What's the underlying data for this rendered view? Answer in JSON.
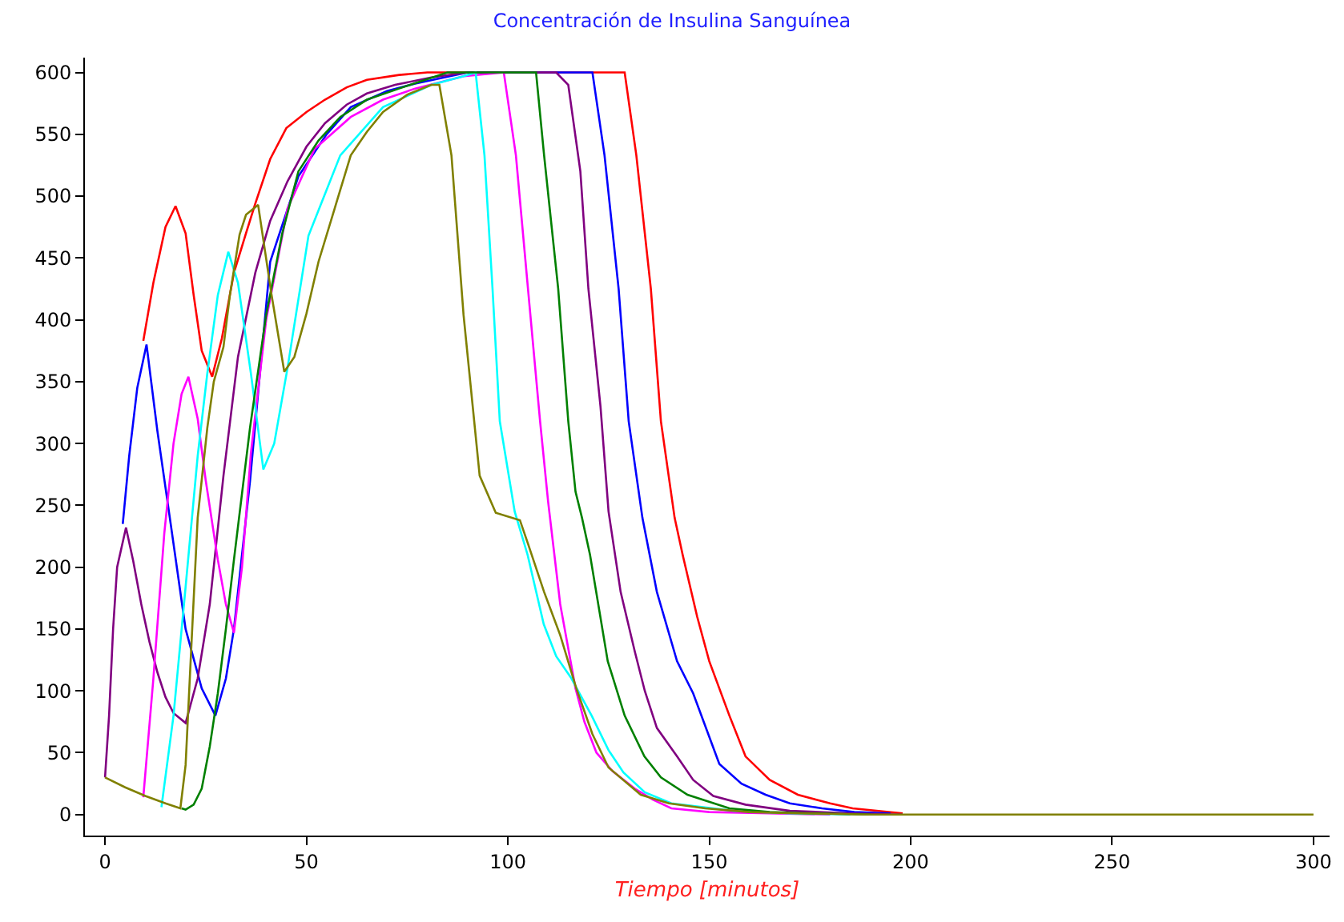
{
  "chart_data": {
    "type": "line",
    "title": "Concentración de Insulina Sanguínea",
    "xlabel": "Tiempo [minutos]",
    "xlim": [
      -5,
      304
    ],
    "ylim": [
      -17,
      612
    ],
    "xticks": [
      0,
      50,
      100,
      150,
      200,
      250,
      300
    ],
    "yticks": [
      0,
      50,
      100,
      150,
      200,
      250,
      300,
      350,
      400,
      450,
      500,
      550,
      600
    ],
    "grid": false,
    "marker": "none",
    "line_style": "solid",
    "series": [
      {
        "color": "#ff0000",
        "x": [
          9.5,
          12,
          15,
          17.5,
          20,
          22,
          24,
          26.6,
          29,
          32,
          35,
          37.3,
          41,
          45,
          50,
          54.6,
          60,
          65,
          73,
          80,
          129,
          131.9,
          135.5,
          138,
          141.4,
          143.4,
          147,
          150,
          155,
          159,
          165,
          172,
          180,
          185.6,
          198
        ],
        "values": [
          383,
          430,
          475,
          492,
          470,
          420,
          375,
          354,
          385,
          438,
          470,
          494,
          530,
          555,
          568,
          578,
          588,
          594,
          598,
          600,
          600,
          533,
          425,
          318,
          240,
          210,
          160,
          124,
          80,
          47,
          28,
          16,
          9,
          5,
          1
        ]
      },
      {
        "color": "#0000ff",
        "x": [
          4.4,
          6,
          8,
          10.3,
          13,
          16.3,
          20,
          24,
          27.4,
          30,
          32,
          36,
          41,
          48,
          55,
          61,
          70,
          77,
          90,
          121,
          124,
          127.5,
          130,
          133.4,
          137,
          142,
          146,
          152.5,
          158,
          164,
          170,
          178,
          186,
          195
        ],
        "values": [
          235,
          290,
          345,
          380,
          310,
          235,
          150,
          102,
          80,
          110,
          150,
          270,
          447,
          516,
          550,
          572,
          585,
          591,
          600,
          600,
          533,
          425,
          318,
          240,
          180,
          124,
          98,
          41,
          25,
          16,
          9,
          5,
          2,
          1
        ]
      },
      {
        "color": "#800080",
        "x": [
          0,
          1,
          2,
          3,
          5.2,
          7,
          9,
          11,
          13,
          15,
          17,
          20,
          23,
          26,
          29.4,
          33,
          37.3,
          41,
          45.3,
          50,
          54.6,
          60,
          65,
          72,
          81,
          90,
          112,
          115,
          118,
          120,
          123,
          125,
          128,
          131.5,
          134,
          137,
          142,
          146,
          151,
          159,
          170,
          185,
          198
        ],
        "values": [
          30,
          80,
          150,
          200,
          232,
          205,
          170,
          140,
          115,
          95,
          82,
          74,
          110,
          170,
          274,
          370,
          438,
          480,
          512,
          540,
          559,
          574,
          583,
          590,
          596,
          600,
          600,
          590,
          520,
          425,
          330,
          245,
          180,
          132,
          100,
          70,
          47,
          28,
          15,
          8,
          3,
          1,
          0
        ]
      },
      {
        "color": "#ff00ff",
        "x": [
          9.5,
          12,
          14.7,
          17,
          19,
          20.7,
          23,
          25,
          28,
          30,
          32,
          34,
          36.2,
          40,
          45.3,
          52,
          61,
          69,
          77,
          89,
          99,
          102,
          105,
          108,
          110,
          113,
          116.8,
          119,
          122,
          126,
          131.5,
          136,
          140.6,
          150,
          165,
          180
        ],
        "values": [
          14,
          110,
          227,
          300,
          340,
          354,
          320,
          270,
          206,
          170,
          147,
          200,
          292,
          400,
          490,
          538,
          564,
          578,
          587,
          597,
          600,
          533,
          425,
          318,
          253,
          170,
          102,
          75,
          50,
          35,
          21,
          12,
          5,
          2,
          1,
          0
        ]
      },
      {
        "color": "#00ffff",
        "x": [
          14,
          17,
          20,
          23,
          25.4,
          28,
          30.6,
          33,
          36.2,
          39.3,
          42,
          45.3,
          50.5,
          58.4,
          69,
          81,
          89,
          92,
          94.2,
          96.2,
          98,
          101.7,
          104.9,
          108.9,
          112,
          115.6,
          120.8,
          125,
          128.7,
          134,
          140.6,
          156,
          170,
          185
        ],
        "values": [
          6,
          80,
          184,
          290,
          357,
          420,
          455,
          430,
          357,
          279,
          300,
          361,
          468,
          533,
          572,
          590,
          597,
          600,
          533,
          425,
          318,
          245,
          210,
          154,
          128,
          111,
          80,
          52,
          34,
          18,
          9,
          3,
          1,
          0
        ]
      },
      {
        "color": "#008000",
        "x": [
          19,
          20,
          22,
          24,
          26,
          28,
          30,
          32,
          36,
          40,
          44,
          48,
          53,
          58.4,
          65,
          73,
          85,
          107,
          109,
          112.5,
          115,
          116.8,
          118.4,
          120.4,
          124.8,
          129,
          133.9,
          138,
          144.6,
          155,
          165,
          175,
          190
        ],
        "values": [
          5,
          4,
          8,
          21,
          55,
          98,
          150,
          206,
          313,
          404,
          470,
          520,
          545,
          564,
          578,
          587,
          600,
          600,
          533,
          425,
          318,
          261,
          240,
          210,
          124,
          80,
          47,
          30,
          16,
          5,
          2,
          1,
          0
        ]
      },
      {
        "color": "#808000",
        "x": [
          0,
          5,
          10,
          15,
          18.7,
          20,
          21.5,
          23,
          25.4,
          27,
          29.4,
          31,
          33.4,
          35,
          38,
          41.3,
          44.5,
          47,
          50,
          53,
          57,
          61,
          65,
          69,
          75,
          81,
          83,
          86,
          89,
          93,
          97,
          103,
          105,
          109,
          113,
          117,
          121,
          125,
          133,
          140,
          149,
          160,
          172,
          190,
          300
        ],
        "values": [
          30,
          22,
          15,
          9,
          5,
          40,
          141,
          240,
          313,
          350,
          378,
          420,
          469,
          485,
          493,
          421,
          358,
          370,
          405,
          447,
          490,
          533,
          552,
          568,
          582,
          590,
          590,
          533,
          404,
          274,
          244,
          238,
          219,
          180,
          145,
          102,
          65,
          38,
          16,
          9,
          5,
          2,
          1,
          0,
          0
        ]
      }
    ]
  }
}
